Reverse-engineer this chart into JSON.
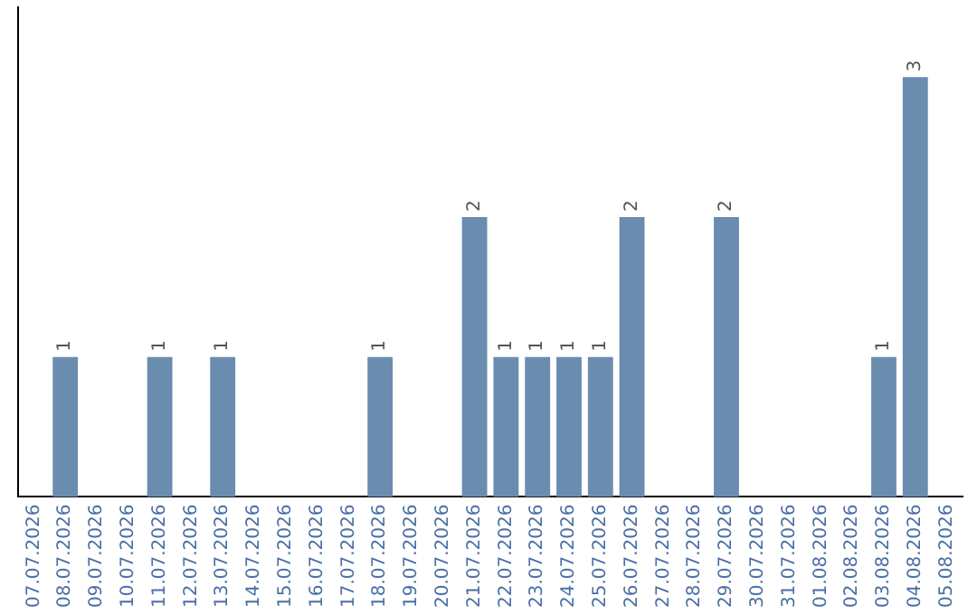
{
  "chart_data": {
    "type": "bar",
    "categories": [
      "07.07.2026",
      "08.07.2026",
      "09.07.2026",
      "10.07.2026",
      "11.07.2026",
      "12.07.2026",
      "13.07.2026",
      "14.07.2026",
      "15.07.2026",
      "16.07.2026",
      "17.07.2026",
      "18.07.2026",
      "19.07.2026",
      "20.07.2026",
      "21.07.2026",
      "22.07.2026",
      "23.07.2026",
      "24.07.2026",
      "25.07.2026",
      "26.07.2026",
      "27.07.2026",
      "28.07.2026",
      "29.07.2026",
      "30.07.2026",
      "31.07.2026",
      "01.08.2026",
      "02.08.2026",
      "03.08.2026",
      "04.08.2026",
      "05.08.2026"
    ],
    "values": [
      null,
      1,
      null,
      null,
      1,
      null,
      1,
      null,
      null,
      null,
      null,
      1,
      null,
      null,
      2,
      1,
      1,
      1,
      1,
      2,
      null,
      null,
      2,
      null,
      null,
      null,
      null,
      1,
      3,
      null
    ],
    "color": "#6a8caf",
    "data_labels": true,
    "grid": false,
    "legend": false,
    "tick_labels": "x"
  }
}
